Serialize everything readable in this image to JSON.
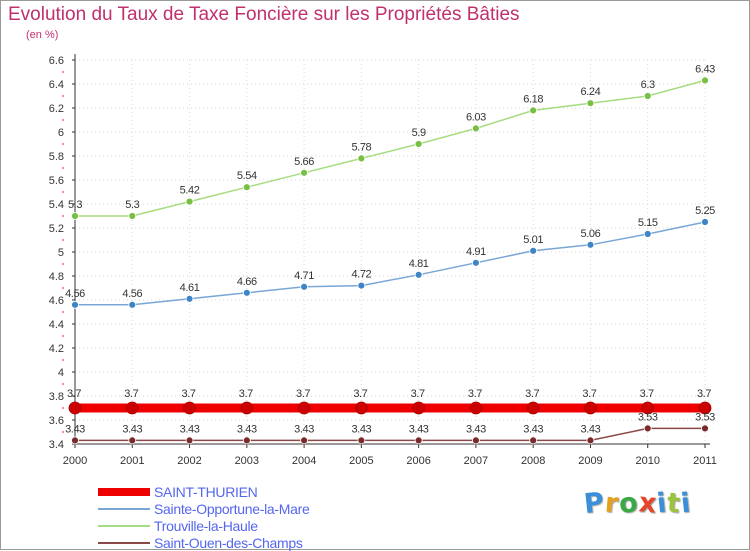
{
  "chart_title": "Evolution du Taux de Taxe Foncière sur les Propriétés Bâties",
  "chart_unit": "(en %)",
  "logo": {
    "text": "Proxiti",
    "letter_colors": [
      "#3a8fd8",
      "#e5a01e",
      "#3aa845",
      "#e5452a",
      "#3a8fd8",
      "#9bc43c",
      "#3a8fd8"
    ]
  },
  "chart_data": {
    "type": "line",
    "title": "Evolution du Taux de Taxe Foncière sur les Propriétés Bâties",
    "ylabel": "(en %)",
    "xlabel": "",
    "x": [
      "2000",
      "2001",
      "2002",
      "2003",
      "2004",
      "2005",
      "2006",
      "2007",
      "2008",
      "2009",
      "2010",
      "2011"
    ],
    "ylim": [
      3.4,
      6.6
    ],
    "yticks": [
      "3.4",
      "3.6",
      "3.8",
      "4",
      "4.2",
      "4.4",
      "4.6",
      "4.8",
      "5",
      "5.2",
      "5.4",
      "5.6",
      "5.8",
      "6",
      "6.2",
      "6.4",
      "6.6"
    ],
    "grid": true,
    "legend": "bottom-left",
    "series": [
      {
        "name": "SAINT-THURIEN",
        "color": "#ee0000",
        "marker_color": "#cc0000",
        "values": [
          3.7,
          3.7,
          3.7,
          3.7,
          3.7,
          3.7,
          3.7,
          3.7,
          3.7,
          3.7,
          3.7,
          3.7
        ],
        "labels": [
          "3.7",
          "3.7",
          "3.7",
          "3.7",
          "3.7",
          "3.7",
          "3.7",
          "3.7",
          "3.7",
          "3.7",
          "3.7",
          "3.7"
        ],
        "bold": true
      },
      {
        "name": "Sainte-Opportune-la-Mare",
        "color": "#7aa6d6",
        "marker_color": "#3d85c6",
        "values": [
          4.56,
          4.56,
          4.61,
          4.66,
          4.71,
          4.72,
          4.81,
          4.91,
          5.01,
          5.06,
          5.15,
          5.25
        ],
        "labels": [
          "4.56",
          "4.56",
          "4.61",
          "4.66",
          "4.71",
          "4.72",
          "4.81",
          "4.91",
          "5.01",
          "5.06",
          "5.15",
          "5.25"
        ]
      },
      {
        "name": "Trouville-la-Haule",
        "color": "#a6dc80",
        "marker_color": "#77c043",
        "values": [
          5.3,
          5.3,
          5.42,
          5.54,
          5.66,
          5.78,
          5.9,
          6.03,
          6.18,
          6.24,
          6.3,
          6.43
        ],
        "labels": [
          "5.3",
          "5.3",
          "5.42",
          "5.54",
          "5.66",
          "5.78",
          "5.9",
          "6.03",
          "6.18",
          "6.24",
          "6.3",
          "6.43"
        ]
      },
      {
        "name": "Saint-Ouen-des-Champs",
        "color": "#8a4848",
        "marker_color": "#7a2a2a",
        "values": [
          3.43,
          3.43,
          3.43,
          3.43,
          3.43,
          3.43,
          3.43,
          3.43,
          3.43,
          3.43,
          3.53,
          3.53
        ],
        "labels": [
          "3.43",
          "3.43",
          "3.43",
          "3.43",
          "3.43",
          "3.43",
          "3.43",
          "3.43",
          "3.43",
          "3.43",
          "3.53",
          "3.53"
        ]
      }
    ]
  }
}
